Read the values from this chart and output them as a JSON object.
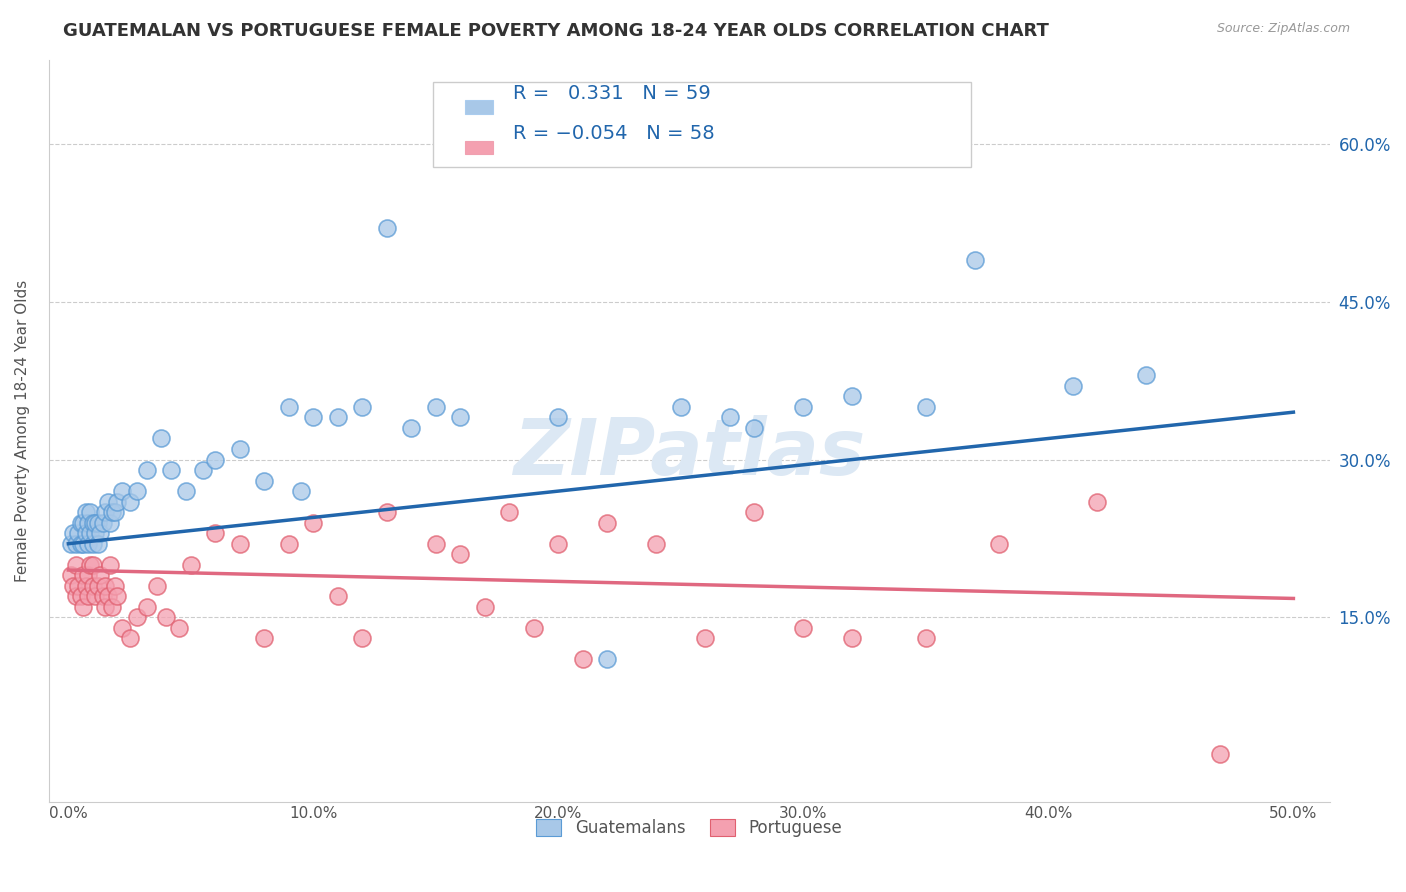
{
  "title": "GUATEMALAN VS PORTUGUESE FEMALE POVERTY AMONG 18-24 YEAR OLDS CORRELATION CHART",
  "source": "Source: ZipAtlas.com",
  "xlabel_ticks": [
    "0.0%",
    "10.0%",
    "20.0%",
    "30.0%",
    "40.0%",
    "50.0%"
  ],
  "xlabel_vals": [
    0.0,
    0.1,
    0.2,
    0.3,
    0.4,
    0.5
  ],
  "ylabel_ticks": [
    "15.0%",
    "30.0%",
    "45.0%",
    "60.0%"
  ],
  "ylabel_vals": [
    0.15,
    0.3,
    0.45,
    0.6
  ],
  "ylabel_label": "Female Poverty Among 18-24 Year Olds",
  "xlim": [
    -0.008,
    0.515
  ],
  "ylim": [
    -0.025,
    0.68
  ],
  "legend_labels": [
    "Guatemalans",
    "Portuguese"
  ],
  "blue_color": "#a8c8e8",
  "pink_color": "#f4a0b0",
  "blue_edge_color": "#5b9bd5",
  "pink_edge_color": "#e06070",
  "blue_line_color": "#2166ac",
  "pink_line_color": "#e06880",
  "blue_text_color": "#2166ac",
  "pink_text_color": "#d44060",
  "watermark": "ZIPatlas",
  "guatemalan_x": [
    0.001,
    0.002,
    0.003,
    0.004,
    0.005,
    0.005,
    0.006,
    0.006,
    0.007,
    0.007,
    0.008,
    0.008,
    0.009,
    0.009,
    0.01,
    0.01,
    0.011,
    0.011,
    0.012,
    0.012,
    0.013,
    0.014,
    0.015,
    0.016,
    0.017,
    0.018,
    0.019,
    0.02,
    0.022,
    0.025,
    0.028,
    0.032,
    0.038,
    0.042,
    0.048,
    0.055,
    0.06,
    0.07,
    0.08,
    0.09,
    0.095,
    0.1,
    0.11,
    0.12,
    0.13,
    0.14,
    0.15,
    0.16,
    0.2,
    0.22,
    0.25,
    0.27,
    0.28,
    0.3,
    0.32,
    0.35,
    0.37,
    0.41,
    0.44
  ],
  "guatemalan_y": [
    0.22,
    0.23,
    0.22,
    0.23,
    0.22,
    0.24,
    0.22,
    0.24,
    0.23,
    0.25,
    0.22,
    0.24,
    0.23,
    0.25,
    0.22,
    0.24,
    0.23,
    0.24,
    0.22,
    0.24,
    0.23,
    0.24,
    0.25,
    0.26,
    0.24,
    0.25,
    0.25,
    0.26,
    0.27,
    0.26,
    0.27,
    0.29,
    0.32,
    0.29,
    0.27,
    0.29,
    0.3,
    0.31,
    0.28,
    0.35,
    0.27,
    0.34,
    0.34,
    0.35,
    0.52,
    0.33,
    0.35,
    0.34,
    0.34,
    0.11,
    0.35,
    0.34,
    0.33,
    0.35,
    0.36,
    0.35,
    0.49,
    0.37,
    0.38
  ],
  "portuguese_x": [
    0.001,
    0.002,
    0.003,
    0.003,
    0.004,
    0.005,
    0.006,
    0.006,
    0.007,
    0.008,
    0.008,
    0.009,
    0.01,
    0.01,
    0.011,
    0.012,
    0.013,
    0.014,
    0.015,
    0.015,
    0.016,
    0.017,
    0.018,
    0.019,
    0.02,
    0.022,
    0.025,
    0.028,
    0.032,
    0.036,
    0.04,
    0.045,
    0.05,
    0.06,
    0.07,
    0.08,
    0.09,
    0.1,
    0.11,
    0.12,
    0.13,
    0.15,
    0.16,
    0.17,
    0.18,
    0.19,
    0.2,
    0.21,
    0.22,
    0.24,
    0.26,
    0.28,
    0.3,
    0.32,
    0.35,
    0.38,
    0.42,
    0.47
  ],
  "portuguese_y": [
    0.19,
    0.18,
    0.17,
    0.2,
    0.18,
    0.17,
    0.16,
    0.19,
    0.18,
    0.17,
    0.19,
    0.2,
    0.18,
    0.2,
    0.17,
    0.18,
    0.19,
    0.17,
    0.16,
    0.18,
    0.17,
    0.2,
    0.16,
    0.18,
    0.17,
    0.14,
    0.13,
    0.15,
    0.16,
    0.18,
    0.15,
    0.14,
    0.2,
    0.23,
    0.22,
    0.13,
    0.22,
    0.24,
    0.17,
    0.13,
    0.25,
    0.22,
    0.21,
    0.16,
    0.25,
    0.14,
    0.22,
    0.11,
    0.24,
    0.22,
    0.13,
    0.25,
    0.14,
    0.13,
    0.13,
    0.22,
    0.26,
    0.02
  ],
  "guate_trend_x": [
    0.0,
    0.5
  ],
  "guate_trend_y": [
    0.22,
    0.345
  ],
  "port_trend_x": [
    0.0,
    0.5
  ],
  "port_trend_y": [
    0.195,
    0.168
  ]
}
